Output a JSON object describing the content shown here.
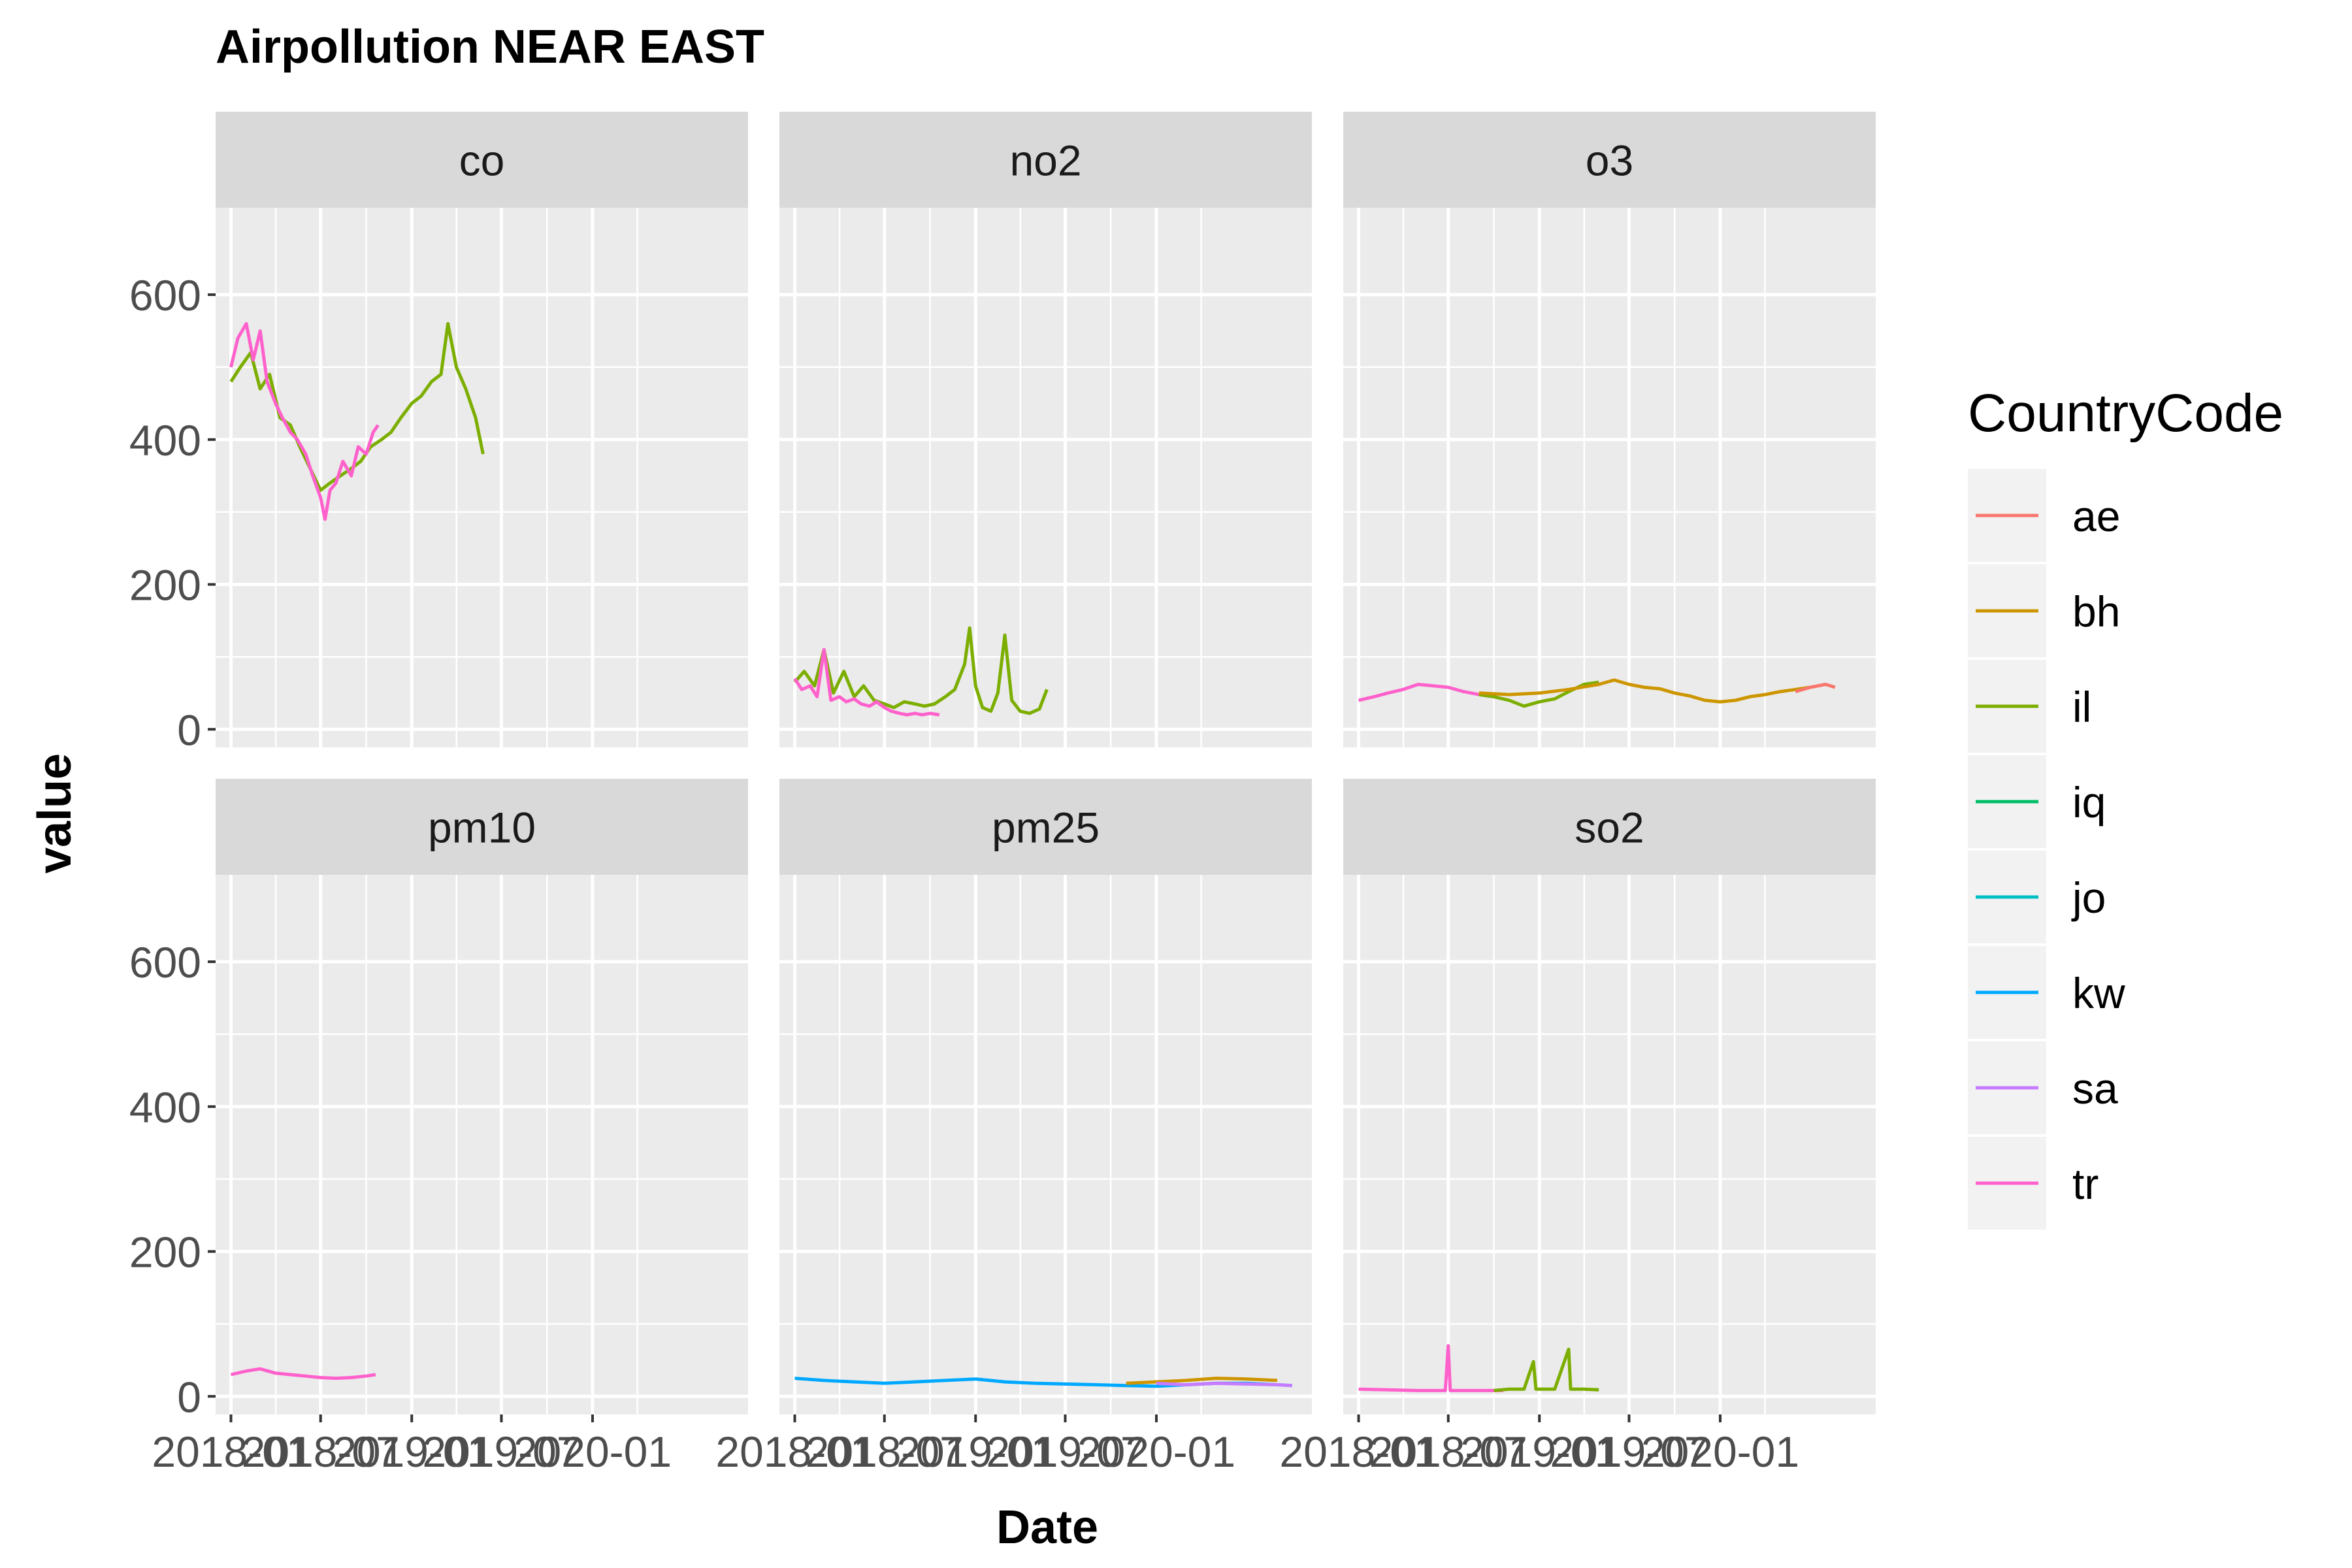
{
  "chart_data": {
    "type": "line",
    "title": "Airpollution NEAR EAST",
    "xlabel": "Date",
    "ylabel": "value",
    "ylim": [
      -25,
      720
    ],
    "y_ticks": [
      0,
      200,
      400,
      600
    ],
    "x_range": [
      "2017-12-01",
      "2020-11-10"
    ],
    "x_ticks": [
      {
        "date": "2018-01-01",
        "label": "2018-01"
      },
      {
        "date": "2018-07-01",
        "label": "2018-07"
      },
      {
        "date": "2019-01-01",
        "label": "2019-01"
      },
      {
        "date": "2019-07-01",
        "label": "2019-07"
      },
      {
        "date": "2020-01-01",
        "label": "2020-01"
      }
    ],
    "grid": true,
    "legend": {
      "title": "CountryCode",
      "placement": "right"
    },
    "colors": {
      "ae": "#F8766D",
      "bh": "#CD9600",
      "il": "#7CAE00",
      "iq": "#00BE67",
      "jo": "#00BFC4",
      "kw": "#00A9FF",
      "sa": "#C77CFF",
      "tr": "#FF61CC"
    },
    "countries": [
      "ae",
      "bh",
      "il",
      "iq",
      "jo",
      "kw",
      "sa",
      "tr"
    ],
    "facets": [
      {
        "name": "co",
        "series": [
          {
            "name": "il",
            "points": [
              [
                "2018-01-01",
                480
              ],
              [
                "2018-01-20",
                500
              ],
              [
                "2018-02-10",
                520
              ],
              [
                "2018-03-01",
                470
              ],
              [
                "2018-03-20",
                490
              ],
              [
                "2018-04-10",
                430
              ],
              [
                "2018-05-01",
                420
              ],
              [
                "2018-05-20",
                390
              ],
              [
                "2018-06-10",
                360
              ],
              [
                "2018-07-01",
                330
              ],
              [
                "2018-07-20",
                340
              ],
              [
                "2018-08-10",
                350
              ],
              [
                "2018-09-01",
                360
              ],
              [
                "2018-09-20",
                370
              ],
              [
                "2018-10-10",
                390
              ],
              [
                "2018-11-01",
                400
              ],
              [
                "2018-11-20",
                410
              ],
              [
                "2018-12-10",
                430
              ],
              [
                "2019-01-01",
                450
              ],
              [
                "2019-01-20",
                460
              ],
              [
                "2019-02-10",
                480
              ],
              [
                "2019-03-01",
                490
              ],
              [
                "2019-03-15",
                560
              ],
              [
                "2019-04-01",
                500
              ],
              [
                "2019-04-20",
                470
              ],
              [
                "2019-05-10",
                430
              ],
              [
                "2019-05-25",
                380
              ]
            ]
          },
          {
            "name": "tr",
            "points": [
              [
                "2018-01-01",
                500
              ],
              [
                "2018-01-15",
                540
              ],
              [
                "2018-02-01",
                560
              ],
              [
                "2018-02-15",
                510
              ],
              [
                "2018-03-01",
                550
              ],
              [
                "2018-03-15",
                480
              ],
              [
                "2018-04-01",
                450
              ],
              [
                "2018-04-15",
                430
              ],
              [
                "2018-05-01",
                410
              ],
              [
                "2018-05-15",
                400
              ],
              [
                "2018-06-01",
                380
              ],
              [
                "2018-06-15",
                350
              ],
              [
                "2018-07-01",
                320
              ],
              [
                "2018-07-10",
                290
              ],
              [
                "2018-07-20",
                330
              ],
              [
                "2018-08-01",
                340
              ],
              [
                "2018-08-15",
                370
              ],
              [
                "2018-09-01",
                350
              ],
              [
                "2018-09-15",
                390
              ],
              [
                "2018-10-01",
                380
              ],
              [
                "2018-10-15",
                410
              ],
              [
                "2018-10-25",
                420
              ]
            ]
          }
        ]
      },
      {
        "name": "no2",
        "series": [
          {
            "name": "il",
            "points": [
              [
                "2018-01-01",
                65
              ],
              [
                "2018-01-20",
                80
              ],
              [
                "2018-02-10",
                60
              ],
              [
                "2018-03-01",
                110
              ],
              [
                "2018-03-20",
                50
              ],
              [
                "2018-04-10",
                80
              ],
              [
                "2018-05-01",
                45
              ],
              [
                "2018-05-20",
                60
              ],
              [
                "2018-06-10",
                40
              ],
              [
                "2018-07-01",
                35
              ],
              [
                "2018-07-20",
                30
              ],
              [
                "2018-08-10",
                38
              ],
              [
                "2018-09-01",
                35
              ],
              [
                "2018-09-20",
                32
              ],
              [
                "2018-10-10",
                35
              ],
              [
                "2018-11-01",
                45
              ],
              [
                "2018-11-20",
                55
              ],
              [
                "2018-12-10",
                90
              ],
              [
                "2018-12-20",
                140
              ],
              [
                "2019-01-01",
                60
              ],
              [
                "2019-01-15",
                30
              ],
              [
                "2019-02-01",
                25
              ],
              [
                "2019-02-15",
                50
              ],
              [
                "2019-03-01",
                130
              ],
              [
                "2019-03-15",
                40
              ],
              [
                "2019-04-01",
                25
              ],
              [
                "2019-04-20",
                22
              ],
              [
                "2019-05-10",
                28
              ],
              [
                "2019-05-25",
                55
              ]
            ]
          },
          {
            "name": "tr",
            "points": [
              [
                "2018-01-01",
                70
              ],
              [
                "2018-01-15",
                55
              ],
              [
                "2018-02-01",
                60
              ],
              [
                "2018-02-15",
                45
              ],
              [
                "2018-03-01",
                110
              ],
              [
                "2018-03-15",
                40
              ],
              [
                "2018-04-01",
                45
              ],
              [
                "2018-04-15",
                38
              ],
              [
                "2018-05-01",
                42
              ],
              [
                "2018-05-15",
                35
              ],
              [
                "2018-06-01",
                32
              ],
              [
                "2018-06-15",
                38
              ],
              [
                "2018-07-01",
                30
              ],
              [
                "2018-07-15",
                25
              ],
              [
                "2018-08-01",
                22
              ],
              [
                "2018-08-15",
                20
              ],
              [
                "2018-09-01",
                22
              ],
              [
                "2018-09-15",
                20
              ],
              [
                "2018-10-01",
                22
              ],
              [
                "2018-10-20",
                20
              ]
            ]
          }
        ]
      },
      {
        "name": "o3",
        "series": [
          {
            "name": "tr",
            "points": [
              [
                "2018-01-01",
                40
              ],
              [
                "2018-02-01",
                45
              ],
              [
                "2018-03-01",
                50
              ],
              [
                "2018-04-01",
                55
              ],
              [
                "2018-05-01",
                62
              ],
              [
                "2018-06-01",
                60
              ],
              [
                "2018-07-01",
                58
              ],
              [
                "2018-08-01",
                52
              ],
              [
                "2018-09-01",
                48
              ],
              [
                "2018-10-01",
                45
              ],
              [
                "2018-10-20",
                42
              ]
            ]
          },
          {
            "name": "il",
            "points": [
              [
                "2018-09-01",
                48
              ],
              [
                "2018-10-01",
                45
              ],
              [
                "2018-11-01",
                40
              ],
              [
                "2018-12-01",
                32
              ],
              [
                "2019-01-01",
                38
              ],
              [
                "2019-02-01",
                42
              ],
              [
                "2019-03-01",
                52
              ],
              [
                "2019-04-01",
                62
              ],
              [
                "2019-05-01",
                65
              ]
            ]
          },
          {
            "name": "bh",
            "points": [
              [
                "2018-09-01",
                50
              ],
              [
                "2018-11-01",
                48
              ],
              [
                "2019-01-01",
                50
              ],
              [
                "2019-03-01",
                55
              ],
              [
                "2019-05-01",
                62
              ],
              [
                "2019-06-01",
                68
              ],
              [
                "2019-07-01",
                62
              ],
              [
                "2019-08-01",
                58
              ],
              [
                "2019-09-01",
                56
              ],
              [
                "2019-10-01",
                50
              ],
              [
                "2019-11-01",
                46
              ],
              [
                "2019-12-01",
                40
              ],
              [
                "2020-01-01",
                38
              ],
              [
                "2020-02-01",
                40
              ],
              [
                "2020-03-01",
                45
              ],
              [
                "2020-04-01",
                48
              ],
              [
                "2020-05-01",
                52
              ],
              [
                "2020-06-01",
                55
              ],
              [
                "2020-07-01",
                58
              ]
            ]
          },
          {
            "name": "ae",
            "points": [
              [
                "2020-06-01",
                52
              ],
              [
                "2020-07-01",
                58
              ],
              [
                "2020-08-01",
                62
              ],
              [
                "2020-08-20",
                58
              ]
            ]
          }
        ]
      },
      {
        "name": "pm10",
        "series": [
          {
            "name": "tr",
            "points": [
              [
                "2018-01-01",
                30
              ],
              [
                "2018-02-01",
                35
              ],
              [
                "2018-03-01",
                38
              ],
              [
                "2018-04-01",
                32
              ],
              [
                "2018-05-01",
                30
              ],
              [
                "2018-06-01",
                28
              ],
              [
                "2018-07-01",
                26
              ],
              [
                "2018-08-01",
                25
              ],
              [
                "2018-09-01",
                26
              ],
              [
                "2018-10-01",
                28
              ],
              [
                "2018-10-20",
                30
              ]
            ]
          }
        ]
      },
      {
        "name": "pm25",
        "series": [
          {
            "name": "kw",
            "points": [
              [
                "2018-01-01",
                25
              ],
              [
                "2018-03-01",
                22
              ],
              [
                "2018-05-01",
                20
              ],
              [
                "2018-07-01",
                18
              ],
              [
                "2018-09-01",
                20
              ],
              [
                "2018-11-01",
                22
              ],
              [
                "2019-01-01",
                24
              ],
              [
                "2019-03-01",
                20
              ],
              [
                "2019-05-01",
                18
              ],
              [
                "2019-07-01",
                17
              ],
              [
                "2019-09-01",
                16
              ],
              [
                "2019-11-01",
                15
              ],
              [
                "2020-01-01",
                14
              ],
              [
                "2020-03-01",
                16
              ],
              [
                "2020-05-01",
                18
              ],
              [
                "2020-07-01",
                18
              ],
              [
                "2020-09-01",
                16
              ],
              [
                "2020-10-01",
                15
              ]
            ]
          },
          {
            "name": "bh",
            "points": [
              [
                "2019-11-01",
                18
              ],
              [
                "2020-01-01",
                20
              ],
              [
                "2020-03-01",
                22
              ],
              [
                "2020-05-01",
                25
              ],
              [
                "2020-07-01",
                24
              ],
              [
                "2020-09-01",
                22
              ]
            ]
          },
          {
            "name": "sa",
            "points": [
              [
                "2020-01-01",
                18
              ],
              [
                "2020-03-01",
                16
              ],
              [
                "2020-05-01",
                18
              ],
              [
                "2020-07-01",
                17
              ],
              [
                "2020-09-01",
                16
              ],
              [
                "2020-10-01",
                15
              ]
            ]
          }
        ]
      },
      {
        "name": "so2",
        "series": [
          {
            "name": "tr",
            "points": [
              [
                "2018-01-01",
                10
              ],
              [
                "2018-03-01",
                9
              ],
              [
                "2018-05-01",
                8
              ],
              [
                "2018-06-25",
                8
              ],
              [
                "2018-07-01",
                70
              ],
              [
                "2018-07-05",
                8
              ],
              [
                "2018-09-01",
                8
              ],
              [
                "2018-10-20",
                8
              ]
            ]
          },
          {
            "name": "il",
            "points": [
              [
                "2018-10-01",
                8
              ],
              [
                "2018-11-01",
                10
              ],
              [
                "2018-12-01",
                10
              ],
              [
                "2018-12-20",
                48
              ],
              [
                "2018-12-25",
                10
              ],
              [
                "2019-02-01",
                10
              ],
              [
                "2019-03-01",
                65
              ],
              [
                "2019-03-05",
                10
              ],
              [
                "2019-04-01",
                10
              ],
              [
                "2019-05-01",
                9
              ]
            ]
          }
        ]
      }
    ]
  }
}
